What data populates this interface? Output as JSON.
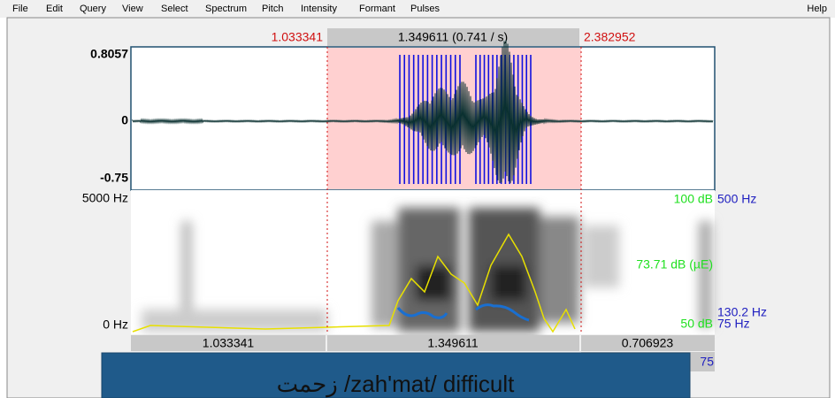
{
  "menu": {
    "items": [
      "File",
      "Edit",
      "Query",
      "View",
      "Select",
      "Spectrum",
      "Pitch",
      "Intensity",
      "Formant",
      "Pulses"
    ],
    "help": "Help"
  },
  "time_bar": {
    "left": "1.033341",
    "center": "1.349611 (0.741 / s)",
    "right": "2.382952"
  },
  "waveform": {
    "top": "0.8057",
    "middle": "0",
    "bottom": "-0.75"
  },
  "spectrogram": {
    "top": "5000 Hz",
    "bottom": "0 Hz",
    "intensity_top": "100 dB",
    "pitch_top": "500 Hz",
    "intensity_cursor": "73.71 dB (µE)",
    "pitch_cursor": "130.2 Hz",
    "intensity_bottom": "50 dB",
    "pitch_bottom": "75 Hz"
  },
  "duration_bar": {
    "left": "1.033341",
    "center": "1.349611",
    "right": "0.706923"
  },
  "lower_row": {
    "label": "75"
  },
  "caption": "زحمت  /zah'mat/   difficult"
}
